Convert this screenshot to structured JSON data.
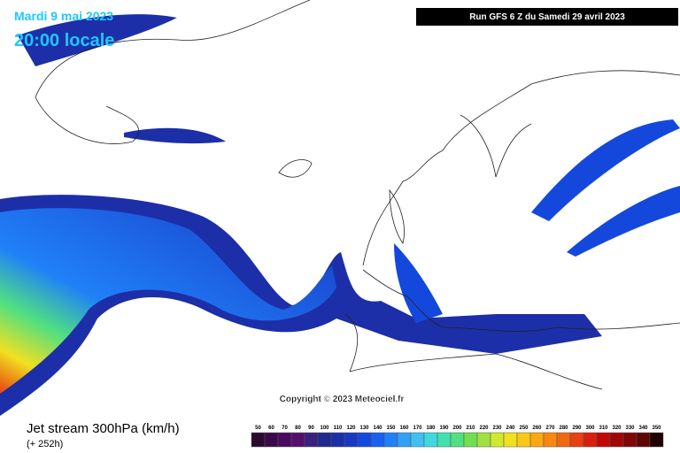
{
  "header": {
    "date": "Mardi 9 mai 2023",
    "time": "20:00 locale",
    "run": "Run GFS 6 Z du Samedi 29 avril 2023"
  },
  "copyright": "Copyright © 2023 Meteociel.fr",
  "footer": {
    "title": "Jet stream 300hPa (km/h)",
    "lead": "(+ 252h)"
  },
  "legend": {
    "labels": [
      50,
      60,
      70,
      80,
      90,
      100,
      110,
      120,
      130,
      140,
      150,
      160,
      170,
      180,
      190,
      200,
      210,
      220,
      230,
      240,
      250,
      260,
      270,
      280,
      290,
      300,
      310,
      320,
      330,
      340,
      350
    ],
    "colors": [
      "#2a0a2e",
      "#3a0a48",
      "#4a0a5e",
      "#55106e",
      "#3a2080",
      "#1e2a8c",
      "#1c2fa8",
      "#1838c4",
      "#1448dc",
      "#1860f0",
      "#2080f8",
      "#30a0f8",
      "#40c0f0",
      "#40d8e0",
      "#40e0b0",
      "#50e080",
      "#70e050",
      "#a0e040",
      "#d0e830",
      "#f0e020",
      "#f8c818",
      "#f8a810",
      "#f88810",
      "#f06810",
      "#e84010",
      "#d82010",
      "#c00808",
      "#a00808",
      "#800808",
      "#600404",
      "#200000"
    ]
  }
}
